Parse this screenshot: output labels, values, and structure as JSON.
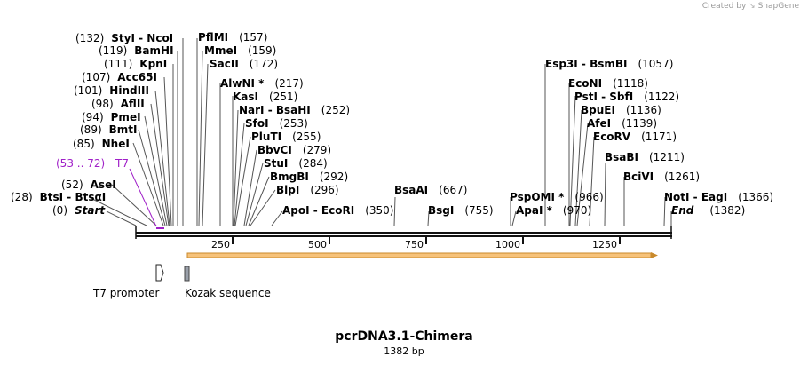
{
  "credit": {
    "prefix": "Created by",
    "brand": "SnapGene"
  },
  "map": {
    "title": "pcrDNA3.1-Chimera",
    "length_label": "1382 bp",
    "length": 1382,
    "tick_labels": [
      "250",
      "500",
      "750",
      "1000",
      "1250"
    ],
    "tick_values": [
      250,
      500,
      750,
      1000,
      1250
    ]
  },
  "enzyme_labels": [
    {
      "pos": "(132)",
      "name": "StyI  - NcoI"
    },
    {
      "pos": "(119)",
      "name": "BamHI"
    },
    {
      "pos": "(111)",
      "name": "KpnI"
    },
    {
      "pos": "(107)",
      "name": "Acc65I"
    },
    {
      "pos": "(101)",
      "name": "HindIII"
    },
    {
      "pos": "(98)",
      "name": "AflII"
    },
    {
      "pos": "(94)",
      "name": "PmeI"
    },
    {
      "pos": "(89)",
      "name": "BmtI"
    },
    {
      "pos": "(85)",
      "name": "NheI"
    },
    {
      "pos": "(52)",
      "name": "AseI"
    },
    {
      "pos": "(28)",
      "name": "BtsI - BtsαI"
    },
    {
      "pos": "(0)",
      "name": "Start"
    },
    {
      "name": "PflMI",
      "pos": "(157)"
    },
    {
      "name": "MmeI",
      "pos": "(159)"
    },
    {
      "name": "SacII",
      "pos": "(172)"
    },
    {
      "name": "AlwNI *",
      "pos": "(217)"
    },
    {
      "name": "KasI",
      "pos": "(251)"
    },
    {
      "name": "NarI  - BsaHI",
      "pos": "(252)"
    },
    {
      "name": "SfoI",
      "pos": "(253)"
    },
    {
      "name": "PluTI",
      "pos": "(255)"
    },
    {
      "name": "BbvCI",
      "pos": "(279)"
    },
    {
      "name": "StuI",
      "pos": "(284)"
    },
    {
      "name": "BmgBI",
      "pos": "(292)"
    },
    {
      "name": "BlpI",
      "pos": "(296)"
    },
    {
      "name": "ApoI  - EcoRI",
      "pos": "(350)"
    },
    {
      "name": "BsaAI",
      "pos": "(667)"
    },
    {
      "name": "BsgI",
      "pos": "(755)"
    },
    {
      "name": "PspOMI *",
      "pos": "(966)"
    },
    {
      "name": "ApaI *",
      "pos": "(970)"
    },
    {
      "name": "Esp3I  - BsmBI",
      "pos": "(1057)"
    },
    {
      "name": "EcoNI",
      "pos": "(1118)"
    },
    {
      "name": "PstI  - SbfI",
      "pos": "(1122)"
    },
    {
      "name": "BpuEI",
      "pos": "(1136)"
    },
    {
      "name": "AfeI",
      "pos": "(1139)"
    },
    {
      "name": "EcoRV",
      "pos": "(1171)"
    },
    {
      "name": "BsaBI",
      "pos": "(1211)"
    },
    {
      "name": "BciVI",
      "pos": "(1261)"
    },
    {
      "name": "NotI  - EagI",
      "pos": "(1366)"
    },
    {
      "name": "End",
      "pos": "(1382)"
    }
  ],
  "primer_label": {
    "pos": "(53 .. 72)",
    "name": "T7"
  },
  "features": [
    {
      "name": "T7 promoter"
    },
    {
      "name": "Kozak sequence"
    }
  ],
  "colors": {
    "primer": "#a020c8",
    "orf_fill": "#f6c27a",
    "orf_stroke": "#c98a2c",
    "kozak_fill": "#9aa0aa"
  }
}
